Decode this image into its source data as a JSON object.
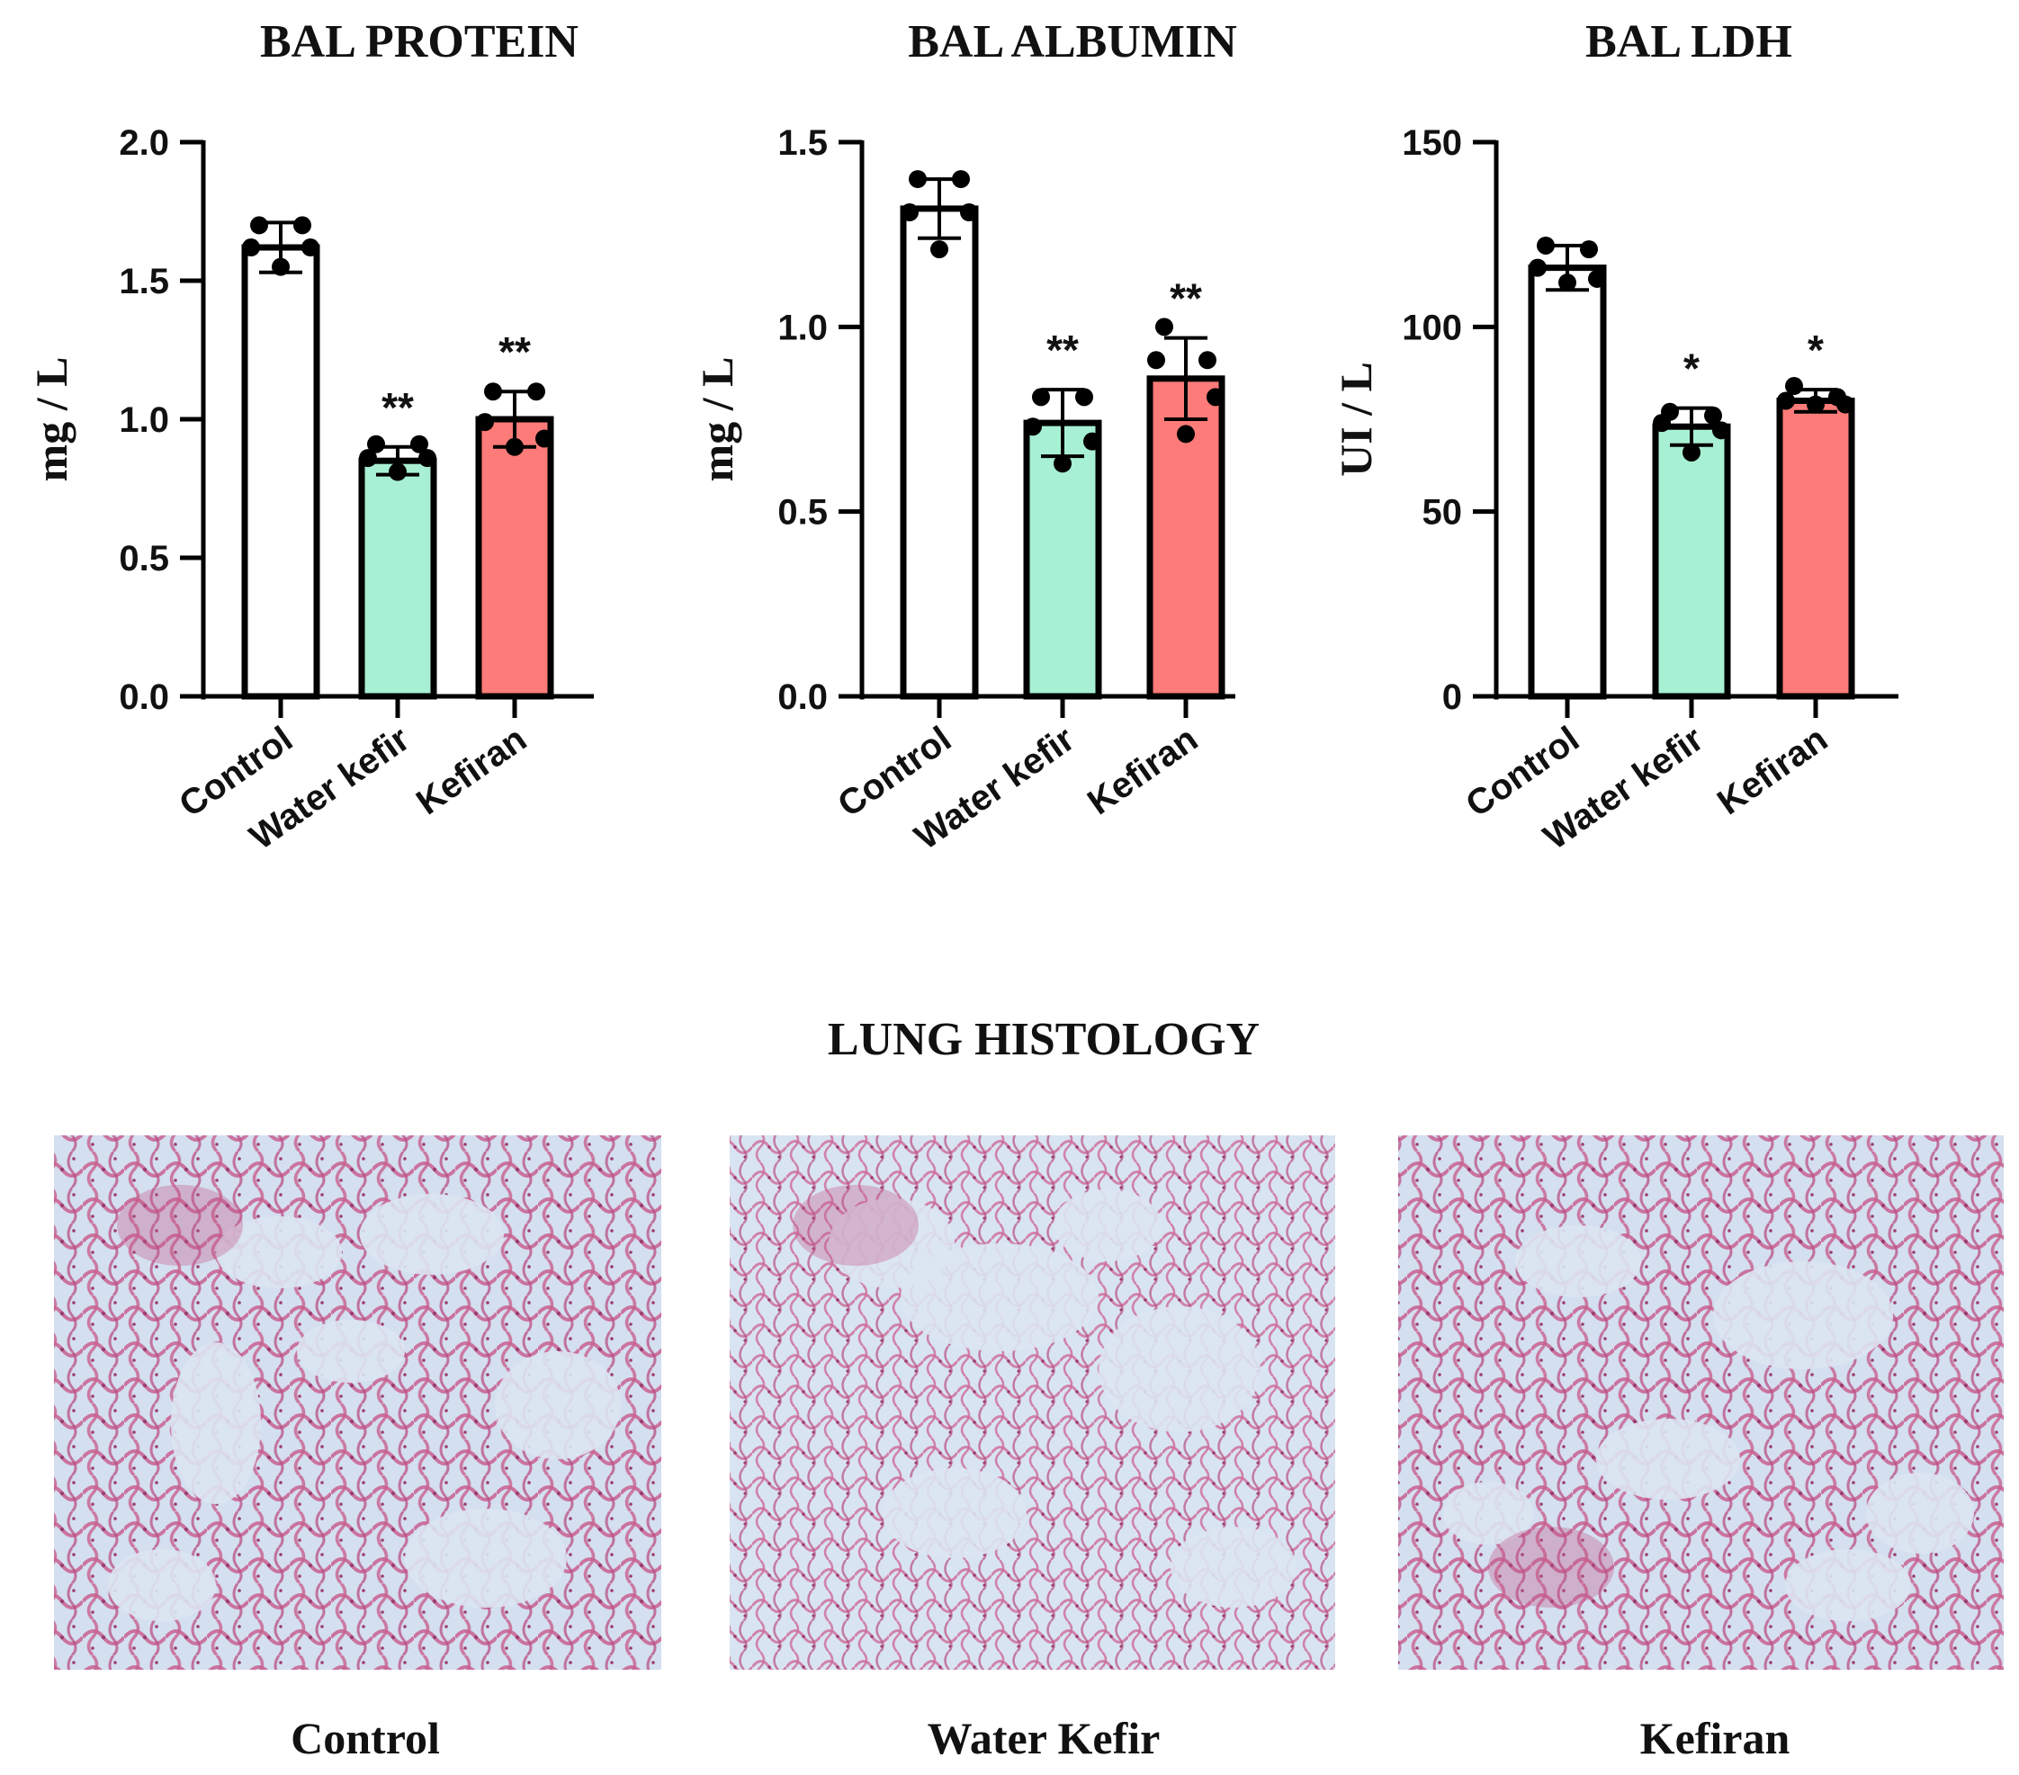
{
  "chart_data": [
    {
      "type": "bar",
      "title": "BAL PROTEIN",
      "ylabel": "mg / L",
      "categories": [
        "Control",
        "Water kefir",
        "Kefiran"
      ],
      "values": [
        1.62,
        0.85,
        1.0
      ],
      "error": [
        0.09,
        0.05,
        0.1
      ],
      "points": [
        [
          1.7,
          1.7,
          1.62,
          1.62,
          1.55
        ],
        [
          0.91,
          0.91,
          0.86,
          0.86,
          0.81
        ],
        [
          1.1,
          1.1,
          0.99,
          0.93,
          0.9
        ]
      ],
      "significance": [
        "",
        "**",
        "**"
      ],
      "ylim": [
        0,
        2.0
      ],
      "yticks": [
        0.0,
        0.5,
        1.0,
        1.5,
        2.0
      ],
      "ytick_labels": [
        "0.0",
        "0.5",
        "1.0",
        "1.5",
        "2.0"
      ],
      "colors": [
        "#ffffff",
        "#a8f0d3",
        "#fd7b78"
      ]
    },
    {
      "type": "bar",
      "title": "BAL ALBUMIN",
      "ylabel": "mg / L",
      "categories": [
        "Control",
        "Water kefir",
        "Kefiran"
      ],
      "values": [
        1.32,
        0.74,
        0.86
      ],
      "error": [
        0.08,
        0.09,
        0.11
      ],
      "points": [
        [
          1.4,
          1.4,
          1.31,
          1.31,
          1.21
        ],
        [
          0.81,
          0.81,
          0.73,
          0.69,
          0.63
        ],
        [
          1.0,
          0.91,
          0.91,
          0.81,
          0.71
        ]
      ],
      "significance": [
        "",
        "**",
        "**"
      ],
      "ylim": [
        0,
        1.5
      ],
      "yticks": [
        0.0,
        0.5,
        1.0,
        1.5
      ],
      "ytick_labels": [
        "0.0",
        "0.5",
        "1.0",
        "1.5"
      ],
      "colors": [
        "#ffffff",
        "#a8f0d3",
        "#fd7b78"
      ]
    },
    {
      "type": "bar",
      "title": "BAL LDH",
      "ylabel": "UI / L",
      "categories": [
        "Control",
        "Water kefir",
        "Kefiran"
      ],
      "values": [
        116,
        73,
        80
      ],
      "error": [
        6,
        5,
        3
      ],
      "points": [
        [
          122,
          121,
          116,
          113,
          112
        ],
        [
          77,
          76,
          74,
          72,
          66
        ],
        [
          84,
          81,
          80,
          79,
          79
        ]
      ],
      "significance": [
        "",
        "*",
        "*"
      ],
      "ylim": [
        0,
        150
      ],
      "yticks": [
        0,
        50,
        100,
        150
      ],
      "ytick_labels": [
        "0",
        "50",
        "100",
        "150"
      ],
      "colors": [
        "#ffffff",
        "#a8f0d3",
        "#fd7b78"
      ]
    }
  ],
  "histology": {
    "title": "LUNG HISTOLOGY",
    "panels": [
      {
        "label": "Control"
      },
      {
        "label": "Water Kefir"
      },
      {
        "label": "Kefiran"
      }
    ],
    "tissue_color": "#c8608f",
    "background_color": "#d4dff0"
  }
}
